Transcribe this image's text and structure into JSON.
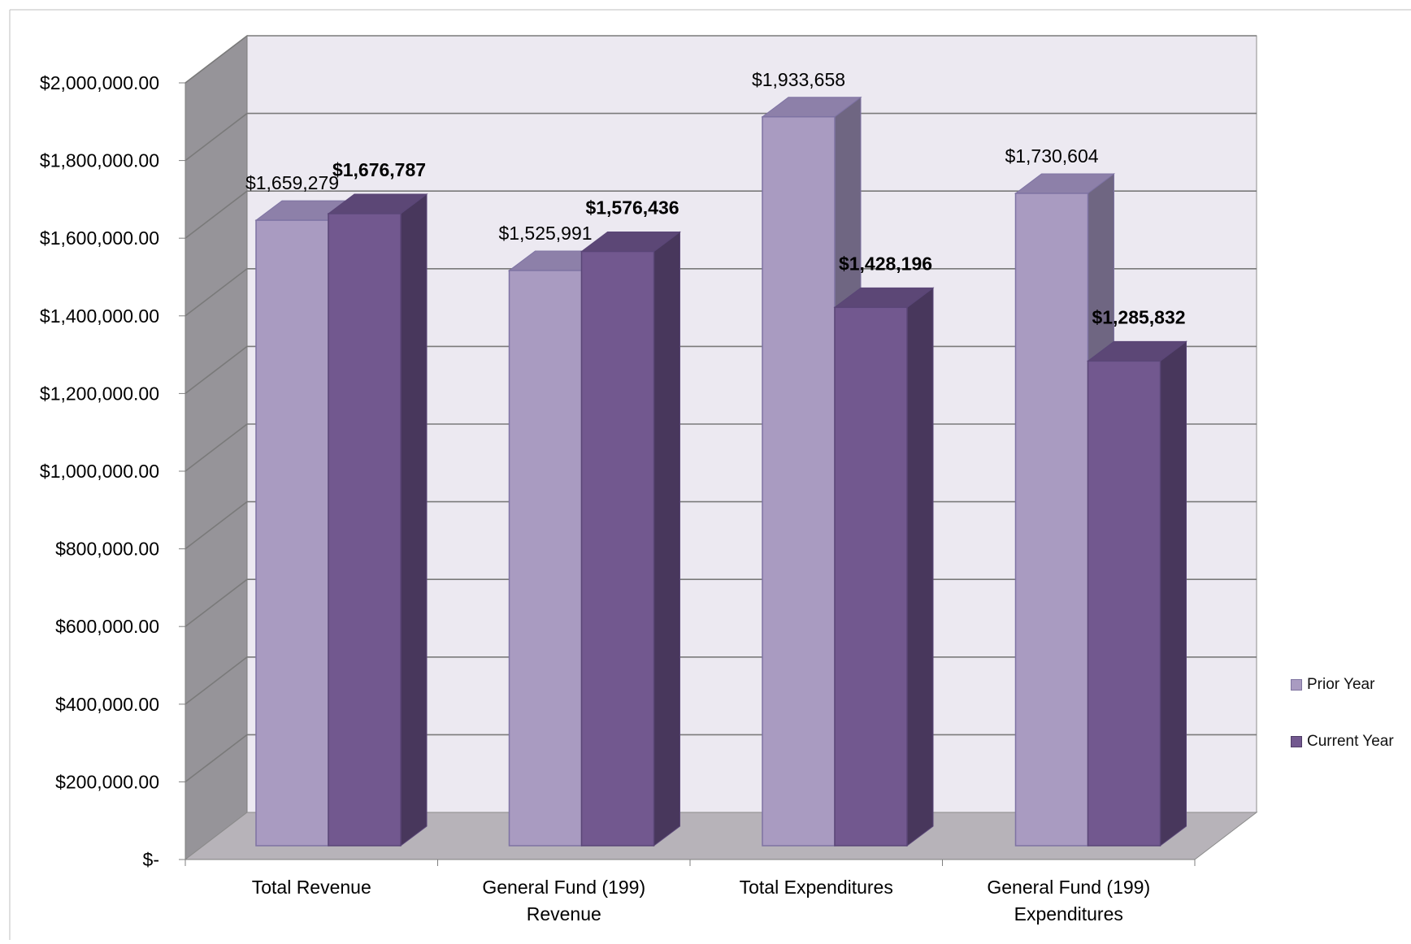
{
  "chart_data": {
    "type": "bar",
    "title": "",
    "xlabel": "",
    "ylabel": "",
    "ylim": [
      0,
      2000000
    ],
    "y_ticks": [
      {
        "value": 0,
        "label": "$-"
      },
      {
        "value": 200000,
        "label": "$200,000.00"
      },
      {
        "value": 400000,
        "label": "$400,000.00"
      },
      {
        "value": 600000,
        "label": "$600,000.00"
      },
      {
        "value": 800000,
        "label": "$800,000.00"
      },
      {
        "value": 1000000,
        "label": "$1,000,000.00"
      },
      {
        "value": 1200000,
        "label": "$1,200,000.00"
      },
      {
        "value": 1400000,
        "label": "$1,400,000.00"
      },
      {
        "value": 1600000,
        "label": "$1,600,000.00"
      },
      {
        "value": 1800000,
        "label": "$1,800,000.00"
      },
      {
        "value": 2000000,
        "label": "$2,000,000.00"
      }
    ],
    "categories": [
      [
        "Total Revenue"
      ],
      [
        "General Fund (199)",
        "Revenue"
      ],
      [
        "Total Expenditures"
      ],
      [
        "General Fund (199)",
        "Expenditures"
      ]
    ],
    "series": [
      {
        "name": "Prior Year",
        "color": "#A99BC1",
        "values": [
          1659279,
          1525991,
          1933658,
          1730604
        ],
        "labels": [
          "$1,659,279",
          "$1,525,991",
          "$1,933,658",
          "$1,730,604"
        ]
      },
      {
        "name": "Current Year",
        "color": "#72588F",
        "values": [
          1676787,
          1576436,
          1428196,
          1285832
        ],
        "labels": [
          "$1,676,787",
          "$1,576,436",
          "$1,428,196",
          "$1,285,832"
        ]
      }
    ],
    "legend_position": "right",
    "grid": true,
    "style": "3d-clustered-column"
  }
}
